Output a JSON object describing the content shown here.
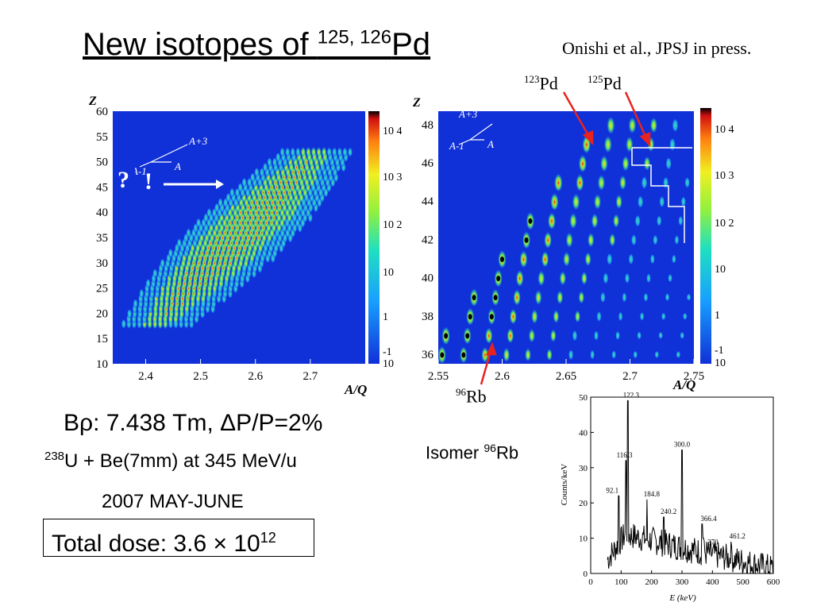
{
  "slide": {
    "title_main": "New isotopes of ",
    "title_sup": "125, 126",
    "title_element": "Pd",
    "reference": "Onishi et al., JPSJ in press.",
    "label_123pd_mass": "123",
    "label_123pd_el": "Pd",
    "label_125pd_mass": "125",
    "label_125pd_el": "Pd",
    "label_96rb_mass": "96",
    "label_96rb_el": "Rb",
    "brho": "Bρ: 7.438 Tm, ΔP/P=2%",
    "beam_mass": "238",
    "beam_rest": "U + Be(7mm) at 345 MeV/u",
    "date": "2007 MAY-JUNE",
    "dose_text": "Total dose: 3.6",
    "dose_times": "×",
    "dose_base": "10",
    "dose_exp": "12",
    "isomer_text": "Isomer ",
    "isomer_mass": "96",
    "isomer_el": "Rb",
    "question_mark": "?",
    "exclamation": "!"
  },
  "colors": {
    "background_blue": "#1030d8",
    "arrow_red": "#e8231f",
    "contour_white": "#ffffff"
  },
  "chart_data": [
    {
      "type": "heatmap",
      "xlabel": "A/Q",
      "ylabel": "Z",
      "xticks": [
        "2.4",
        "2.5",
        "2.6",
        "2.7"
      ],
      "yticks": [
        "10",
        "15",
        "20",
        "25",
        "30",
        "35",
        "40",
        "45",
        "50",
        "55",
        "60"
      ],
      "xlim": [
        2.34,
        2.8
      ],
      "ylim": [
        10,
        60
      ],
      "colorbar_ticks": [
        "10 4",
        "10 3",
        "10 2",
        "10",
        "1",
        "-1",
        "10"
      ],
      "annotation_top": "A+3",
      "annotation_left": "A-1",
      "annotation_base": "A"
    },
    {
      "type": "heatmap",
      "xlabel": "A/Q",
      "ylabel": "Z",
      "xticks": [
        "2.55",
        "2.6",
        "2.65",
        "2.7",
        "2.75"
      ],
      "yticks": [
        "36",
        "38",
        "40",
        "42",
        "44",
        "46",
        "48"
      ],
      "xlim": [
        2.55,
        2.75
      ],
      "ylim": [
        35.5,
        48.7
      ],
      "colorbar_ticks": [
        "10 4",
        "10 3",
        "10 2",
        "10",
        "1",
        "-1",
        "10"
      ],
      "annotation_top": "A+3",
      "annotation_left": "A-1",
      "annotation_base": "A"
    },
    {
      "type": "line",
      "xlabel": "E (keV)",
      "ylabel": "Counts/keV",
      "xlim": [
        0,
        600
      ],
      "ylim": [
        0,
        50
      ],
      "xticks": [
        "0",
        "100",
        "200",
        "300",
        "400",
        "500",
        "600"
      ],
      "yticks": [
        "0",
        "10",
        "20",
        "30",
        "40",
        "50"
      ],
      "peaks": [
        {
          "energy": 92.1,
          "counts": 22
        },
        {
          "energy": 116.3,
          "counts": 32
        },
        {
          "energy": 122.3,
          "counts": 49
        },
        {
          "energy": 184.8,
          "counts": 21
        },
        {
          "energy": 240.2,
          "counts": 16
        },
        {
          "energy": 300.0,
          "counts": 35
        },
        {
          "energy": 366.4,
          "counts": 14
        },
        {
          "energy": 370,
          "counts": 10
        },
        {
          "energy": 461.2,
          "counts": 9
        }
      ],
      "peak_labels": [
        "92.1",
        "116.3",
        "122.3",
        "184.8",
        "240.2",
        "300.0",
        "366.4",
        "370",
        "461.2"
      ]
    }
  ]
}
